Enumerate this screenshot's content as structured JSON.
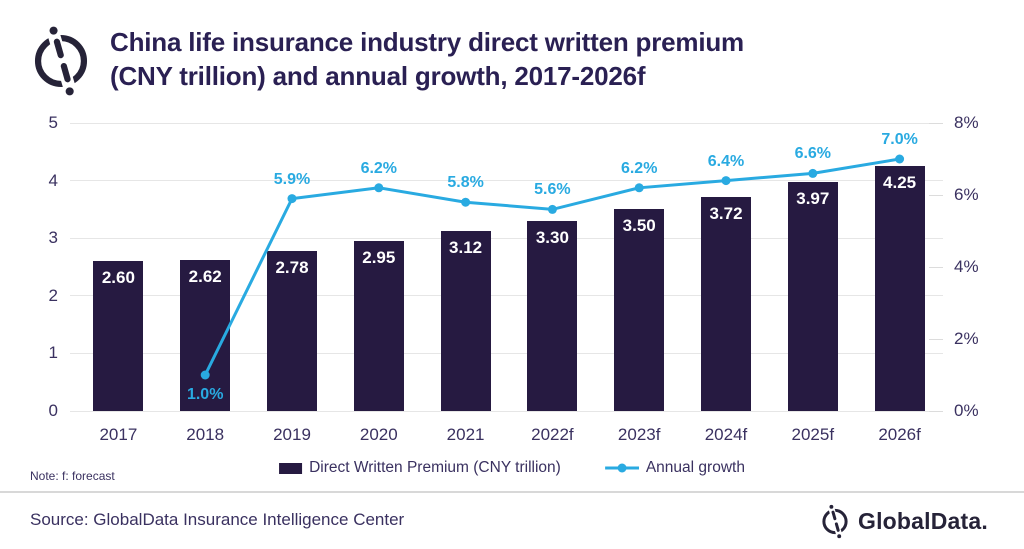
{
  "header": {
    "title_line1": "China life insurance industry direct written premium",
    "title_line2": "(CNY trillion) and annual growth, 2017-2026f"
  },
  "chart_data": {
    "type": "bar",
    "title": "China life insurance industry direct written premium (CNY trillion) and annual growth, 2017-2026f",
    "categories": [
      "2017",
      "2018",
      "2019",
      "2020",
      "2021",
      "2022f",
      "2023f",
      "2024f",
      "2025f",
      "2026f"
    ],
    "series": [
      {
        "name": "Direct Written Premium (CNY trillion)",
        "type": "bar",
        "axis": "left",
        "color": "#261a41",
        "values": [
          2.6,
          2.62,
          2.78,
          2.95,
          3.12,
          3.3,
          3.5,
          3.72,
          3.97,
          4.25
        ],
        "value_labels": [
          "2.60",
          "2.62",
          "2.78",
          "2.95",
          "3.12",
          "3.30",
          "3.50",
          "3.72",
          "3.97",
          "4.25"
        ]
      },
      {
        "name": "Annual growth",
        "type": "line",
        "axis": "right",
        "color": "#29aae1",
        "values": [
          null,
          1.0,
          5.9,
          6.2,
          5.8,
          5.6,
          6.2,
          6.4,
          6.6,
          7.0
        ],
        "value_labels": [
          "",
          "1.0%",
          "5.9%",
          "6.2%",
          "5.8%",
          "5.6%",
          "6.2%",
          "6.4%",
          "6.6%",
          "7.0%"
        ]
      }
    ],
    "left_axis": {
      "min": 0,
      "max": 5,
      "ticks": [
        5,
        4,
        3,
        2,
        1,
        0
      ]
    },
    "right_axis": {
      "min": 0,
      "max": 8,
      "ticks": [
        "8%",
        "6%",
        "4%",
        "2%",
        "0%"
      ],
      "tick_values": [
        8,
        6,
        4,
        2,
        0
      ]
    },
    "grid": true,
    "legend_position": "bottom"
  },
  "note_text": "Note: f: forecast",
  "source_text": "Source: GlobalData Insurance Intelligence Center",
  "brand_text": "GlobalData.",
  "colors": {
    "bar": "#261a41",
    "line": "#29aae1",
    "title": "#2a2053",
    "axis_text": "#3a3160",
    "grid": "#e6e6e6"
  }
}
